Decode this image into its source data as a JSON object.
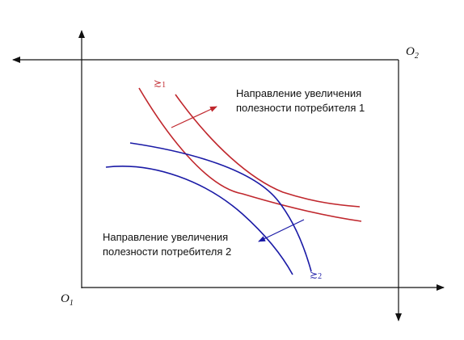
{
  "origin_consumer1": {
    "letter": "O",
    "subscript": "1"
  },
  "origin_consumer2": {
    "letter": "O",
    "subscript": "2"
  },
  "consumer1": {
    "preference_symbol": "≿",
    "preference_index": "1",
    "direction_line1": "Направление увеличения",
    "direction_line2": "полезности потребителя 1",
    "color": "#c0272d"
  },
  "consumer2": {
    "preference_symbol": "≿",
    "preference_index": "2",
    "direction_line1": "Направление увеличения",
    "direction_line2": "полезности потребителя 2",
    "color": "#1a1aa6"
  },
  "axis_color": "#111111"
}
